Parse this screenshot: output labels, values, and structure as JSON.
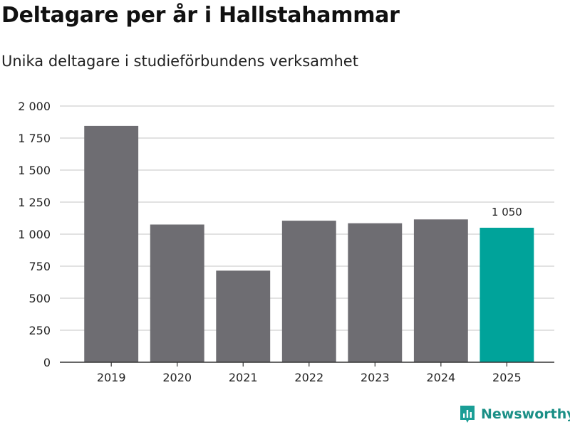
{
  "header": {
    "title": "Deltagare per år i Hallstahammar",
    "subtitle": "Unika deltagare i studieförbundens verksamhet"
  },
  "brand": {
    "name": "Newsworthy",
    "icon": "newsworthy-logo-icon",
    "color": "#1a9e96"
  },
  "colors": {
    "bar": "#6e6d72",
    "highlight": "#00a39a",
    "grid": "#d9d9d9",
    "axis": "#333333"
  },
  "chart_data": {
    "type": "bar",
    "title": "Deltagare per år i Hallstahammar",
    "subtitle": "Unika deltagare i studieförbundens verksamhet",
    "categories": [
      "2019",
      "2020",
      "2021",
      "2022",
      "2023",
      "2024",
      "2025"
    ],
    "values": [
      1845,
      1075,
      715,
      1105,
      1085,
      1115,
      1050
    ],
    "highlight_index": 6,
    "data_labels": [
      {
        "index": 6,
        "text": "1 050"
      }
    ],
    "ylim": [
      0,
      2000
    ],
    "yticks": [
      0,
      250,
      500,
      750,
      1000,
      1250,
      1500,
      1750,
      2000
    ],
    "ytick_labels": [
      "0",
      "250",
      "500",
      "750",
      "1 000",
      "1 250",
      "1 500",
      "1 750",
      "2 000"
    ],
    "xlabel": "",
    "ylabel": "",
    "grid": true,
    "legend": "none"
  }
}
